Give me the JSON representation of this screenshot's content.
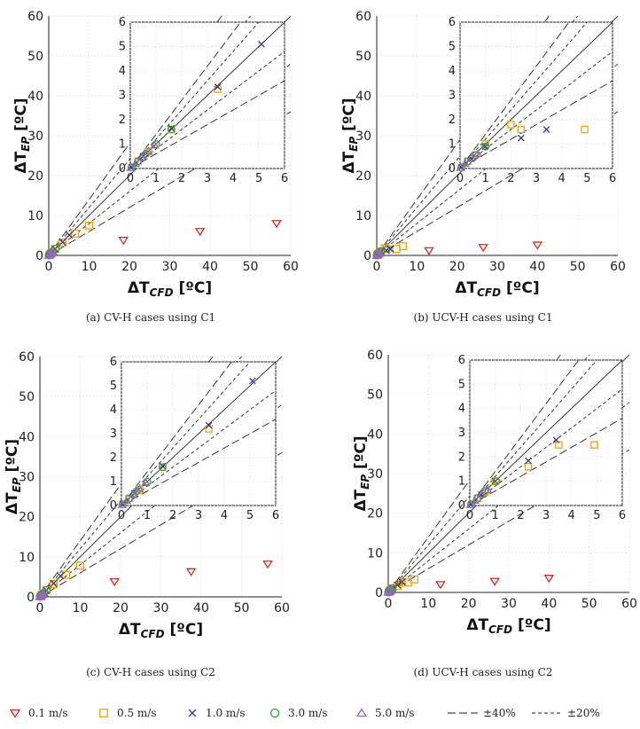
{
  "chart_data": [
    {
      "type": "scatter",
      "panel": "a",
      "caption": "(a) CV-H cases using C1",
      "xlabel_base": "ΔT",
      "xlabel_sub": "CFD",
      "xlabel_unit": " [ºC]",
      "ylabel_base": "ΔT",
      "ylabel_sub": "EP",
      "ylabel_unit": " [ºC]",
      "xlim": [
        0,
        60
      ],
      "ylim": [
        0,
        60
      ],
      "xticks": [
        "0",
        "10",
        "20",
        "30",
        "40",
        "50",
        "60"
      ],
      "yticks": [
        "0",
        "10",
        "20",
        "30",
        "40",
        "50",
        "60"
      ],
      "inset": {
        "xlim": [
          0,
          6
        ],
        "ylim": [
          0,
          6
        ],
        "xticks": [
          "0",
          "1",
          "2",
          "3",
          "4",
          "5",
          "6"
        ],
        "yticks": [
          "0",
          "1",
          "2",
          "3",
          "4",
          "5",
          "6"
        ]
      },
      "series": [
        {
          "name": "0.1 m/s",
          "points": [
            [
              18.5,
              3.8
            ],
            [
              37.5,
              6.0
            ],
            [
              56.5,
              8.0
            ]
          ]
        },
        {
          "name": "0.5 m/s",
          "points": [
            [
              0.3,
              0.3
            ],
            [
              0.7,
              0.7
            ],
            [
              1.6,
              1.6
            ],
            [
              3.4,
              3.25
            ],
            [
              6.5,
              5.5
            ],
            [
              10.0,
              7.5
            ]
          ]
        },
        {
          "name": "1.0 m/s",
          "points": [
            [
              0.05,
              0.05
            ],
            [
              0.5,
              0.5
            ],
            [
              1.6,
              1.65
            ],
            [
              3.4,
              3.35
            ],
            [
              5.1,
              5.1
            ]
          ]
        },
        {
          "name": "3.0 m/s",
          "points": [
            [
              0.05,
              0.05
            ],
            [
              0.3,
              0.3
            ],
            [
              0.6,
              0.6
            ],
            [
              1.0,
              1.0
            ],
            [
              1.6,
              1.6
            ]
          ]
        },
        {
          "name": "5.0 m/s",
          "points": [
            [
              0.03,
              0.03
            ],
            [
              0.2,
              0.2
            ],
            [
              0.45,
              0.45
            ],
            [
              0.7,
              0.7
            ],
            [
              0.95,
              0.95
            ]
          ]
        }
      ]
    },
    {
      "type": "scatter",
      "panel": "b",
      "caption": "(b) UCV-H cases using C1",
      "xlabel_base": "ΔT",
      "xlabel_sub": "CFD",
      "xlabel_unit": " [ºC]",
      "ylabel_base": "ΔT",
      "ylabel_sub": "EP",
      "ylabel_unit": " [ºC]",
      "xlim": [
        0,
        60
      ],
      "ylim": [
        0,
        60
      ],
      "xticks": [
        "0",
        "10",
        "20",
        "30",
        "40",
        "50",
        "60"
      ],
      "yticks": [
        "0",
        "10",
        "20",
        "30",
        "40",
        "50",
        "60"
      ],
      "inset": {
        "xlim": [
          0,
          6
        ],
        "ylim": [
          0,
          6
        ],
        "xticks": [
          "0",
          "1",
          "2",
          "3",
          "4",
          "5",
          "6"
        ],
        "yticks": [
          "0",
          "1",
          "2",
          "3",
          "4",
          "5",
          "6"
        ]
      },
      "series": [
        {
          "name": "0.1 m/s",
          "points": [
            [
              13.0,
              1.2
            ],
            [
              26.5,
              2.0
            ],
            [
              40.0,
              2.6
            ]
          ]
        },
        {
          "name": "0.5 m/s",
          "points": [
            [
              0.3,
              0.3
            ],
            [
              0.6,
              0.55
            ],
            [
              1.0,
              1.0
            ],
            [
              2.4,
              1.6
            ],
            [
              4.9,
              1.6
            ],
            [
              6.5,
              2.3
            ],
            [
              2.0,
              1.8
            ]
          ]
        },
        {
          "name": "1.0 m/s",
          "points": [
            [
              0.05,
              0.05
            ],
            [
              0.45,
              0.4
            ],
            [
              1.0,
              0.9
            ],
            [
              2.4,
              1.25
            ],
            [
              3.4,
              1.6
            ]
          ]
        },
        {
          "name": "3.0 m/s",
          "points": [
            [
              0.05,
              0.05
            ],
            [
              0.3,
              0.3
            ],
            [
              0.6,
              0.55
            ],
            [
              1.0,
              0.9
            ]
          ]
        },
        {
          "name": "5.0 m/s",
          "points": [
            [
              0.03,
              0.03
            ],
            [
              0.2,
              0.2
            ],
            [
              0.45,
              0.45
            ],
            [
              0.7,
              0.6
            ]
          ]
        }
      ]
    },
    {
      "type": "scatter",
      "panel": "c",
      "caption": "(c) CV-H cases using C2",
      "xlabel_base": "ΔT",
      "xlabel_sub": "CFD",
      "xlabel_unit": " [ºC]",
      "ylabel_base": "ΔT",
      "ylabel_sub": "EP",
      "ylabel_unit": " [ºC]",
      "xlim": [
        0,
        60
      ],
      "ylim": [
        0,
        60
      ],
      "xticks": [
        "0",
        "10",
        "20",
        "30",
        "40",
        "50",
        "60"
      ],
      "yticks": [
        "0",
        "10",
        "20",
        "30",
        "40",
        "50",
        "60"
      ],
      "inset": {
        "xlim": [
          0,
          6
        ],
        "ylim": [
          0,
          6
        ],
        "xticks": [
          "0",
          "1",
          "2",
          "3",
          "4",
          "5",
          "6"
        ],
        "yticks": [
          "0",
          "1",
          "2",
          "3",
          "4",
          "5",
          "6"
        ]
      },
      "series": [
        {
          "name": "0.1 m/s",
          "points": [
            [
              18.5,
              3.8
            ],
            [
              37.5,
              6.3
            ],
            [
              56.5,
              8.2
            ]
          ]
        },
        {
          "name": "0.5 m/s",
          "points": [
            [
              0.3,
              0.3
            ],
            [
              0.7,
              0.65
            ],
            [
              1.6,
              1.6
            ],
            [
              3.4,
              3.2
            ],
            [
              6.5,
              5.5
            ],
            [
              10.0,
              7.8
            ]
          ]
        },
        {
          "name": "1.0 m/s",
          "points": [
            [
              0.05,
              0.05
            ],
            [
              0.5,
              0.5
            ],
            [
              1.6,
              1.65
            ],
            [
              3.4,
              3.35
            ],
            [
              5.1,
              5.2
            ]
          ]
        },
        {
          "name": "3.0 m/s",
          "points": [
            [
              0.05,
              0.05
            ],
            [
              0.3,
              0.3
            ],
            [
              0.6,
              0.6
            ],
            [
              1.0,
              1.0
            ],
            [
              1.6,
              1.6
            ]
          ]
        },
        {
          "name": "5.0 m/s",
          "points": [
            [
              0.03,
              0.03
            ],
            [
              0.2,
              0.2
            ],
            [
              0.45,
              0.45
            ],
            [
              0.7,
              0.7
            ],
            [
              0.95,
              0.95
            ]
          ]
        }
      ]
    },
    {
      "type": "scatter",
      "panel": "d",
      "caption": "(d) UCV-H cases using C2",
      "xlabel_base": "ΔT",
      "xlabel_sub": "CFD",
      "xlabel_unit": " [ºC]",
      "ylabel_base": "ΔT",
      "ylabel_sub": "EP",
      "ylabel_unit": " [ºC]",
      "xlim": [
        0,
        60
      ],
      "ylim": [
        0,
        60
      ],
      "xticks": [
        "0",
        "10",
        "20",
        "30",
        "40",
        "50",
        "60"
      ],
      "yticks": [
        "0",
        "10",
        "20",
        "30",
        "40",
        "50",
        "60"
      ],
      "inset": {
        "xlim": [
          0,
          6
        ],
        "ylim": [
          0,
          6
        ],
        "xticks": [
          "0",
          "1",
          "2",
          "3",
          "4",
          "5",
          "6"
        ],
        "yticks": [
          "0",
          "1",
          "2",
          "3",
          "4",
          "5",
          "6"
        ]
      },
      "series": [
        {
          "name": "0.1 m/s",
          "points": [
            [
              13.0,
              2.0
            ],
            [
              26.5,
              2.8
            ],
            [
              40.0,
              3.6
            ]
          ]
        },
        {
          "name": "0.5 m/s",
          "points": [
            [
              0.3,
              0.3
            ],
            [
              0.6,
              0.55
            ],
            [
              1.0,
              1.0
            ],
            [
              2.3,
              1.6
            ],
            [
              4.9,
              2.5
            ],
            [
              6.5,
              3.3
            ],
            [
              3.5,
              2.5
            ]
          ]
        },
        {
          "name": "1.0 m/s",
          "points": [
            [
              0.05,
              0.05
            ],
            [
              0.45,
              0.45
            ],
            [
              1.0,
              1.0
            ],
            [
              2.3,
              1.85
            ],
            [
              3.4,
              2.7
            ]
          ]
        },
        {
          "name": "3.0 m/s",
          "points": [
            [
              0.05,
              0.05
            ],
            [
              0.3,
              0.3
            ],
            [
              0.6,
              0.6
            ],
            [
              1.05,
              1.0
            ]
          ]
        },
        {
          "name": "5.0 m/s",
          "points": [
            [
              0.03,
              0.03
            ],
            [
              0.2,
              0.2
            ],
            [
              0.45,
              0.45
            ],
            [
              0.7,
              0.65
            ]
          ]
        }
      ]
    }
  ],
  "legend": {
    "items": [
      {
        "label": "0.1 m/s",
        "marker": "triangle-down",
        "color": "#d62728"
      },
      {
        "label": "0.5 m/s",
        "marker": "square",
        "color": "#f0a30a"
      },
      {
        "label": "1.0 m/s",
        "marker": "x",
        "color": "#3a3a8c"
      },
      {
        "label": "3.0 m/s",
        "marker": "circle",
        "color": "#2ca02c"
      },
      {
        "label": "5.0 m/s",
        "marker": "triangle-up",
        "color": "#9467bd"
      },
      {
        "label": "±40%",
        "marker": "long-dash",
        "color": "#222222"
      },
      {
        "label": "±20%",
        "marker": "short-dash",
        "color": "#222222"
      }
    ]
  },
  "colors": {
    "line": "#222222",
    "grid": "#d0d0d0"
  }
}
